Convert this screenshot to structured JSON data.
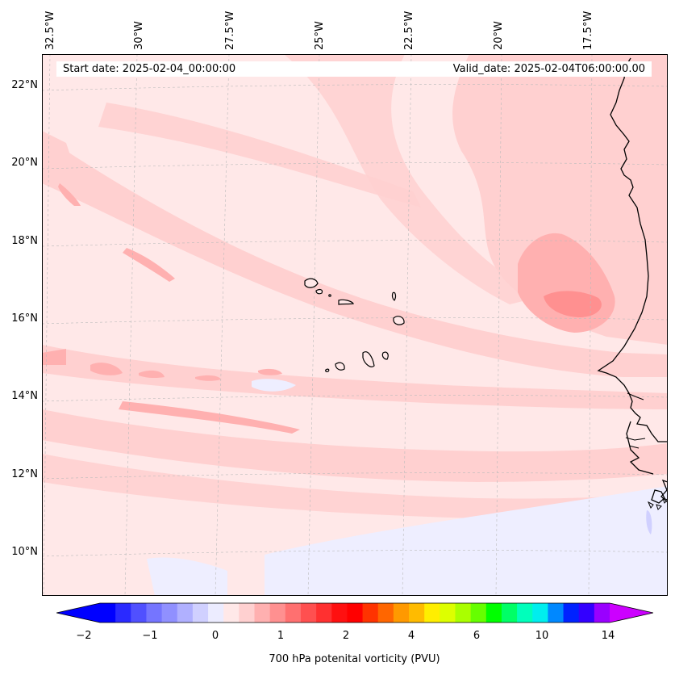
{
  "map": {
    "start_date": "Start date: 2025-02-04_00:00:00",
    "valid_date": "Valid_date: 2025-02-04T06:00:00.00",
    "lon_labels": [
      "32.5°W",
      "30°W",
      "27.5°W",
      "25°W",
      "22.5°W",
      "20°W",
      "17.5°W"
    ],
    "lat_labels": [
      "22°N",
      "20°N",
      "18°N",
      "16°N",
      "14°N",
      "12°N",
      "10°N"
    ]
  },
  "colorbar": {
    "label": "700 hPa potenital vorticity (PVU)",
    "ticks": [
      "−2",
      "−1",
      "0",
      "1",
      "2",
      "4",
      "6",
      "10",
      "14"
    ],
    "colors": [
      "#0000ff",
      "#2a2aff",
      "#5050ff",
      "#7575ff",
      "#9090ff",
      "#b0b0ff",
      "#d0d0ff",
      "#ececff",
      "#ffe8e8",
      "#ffd0d0",
      "#ffb0b0",
      "#ff9090",
      "#ff7070",
      "#ff5050",
      "#ff3030",
      "#ff1010",
      "#ff0000",
      "#ff3300",
      "#ff6600",
      "#ff9900",
      "#ffbb00",
      "#ffee00",
      "#ddff00",
      "#aaff00",
      "#66ff00",
      "#00ff00",
      "#00ff66",
      "#00ffbb",
      "#00eeee",
      "#0088ff",
      "#0022ff",
      "#3300ff",
      "#9900ff"
    ],
    "under_color": "#0000ff",
    "over_color": "#cc00ff"
  }
}
